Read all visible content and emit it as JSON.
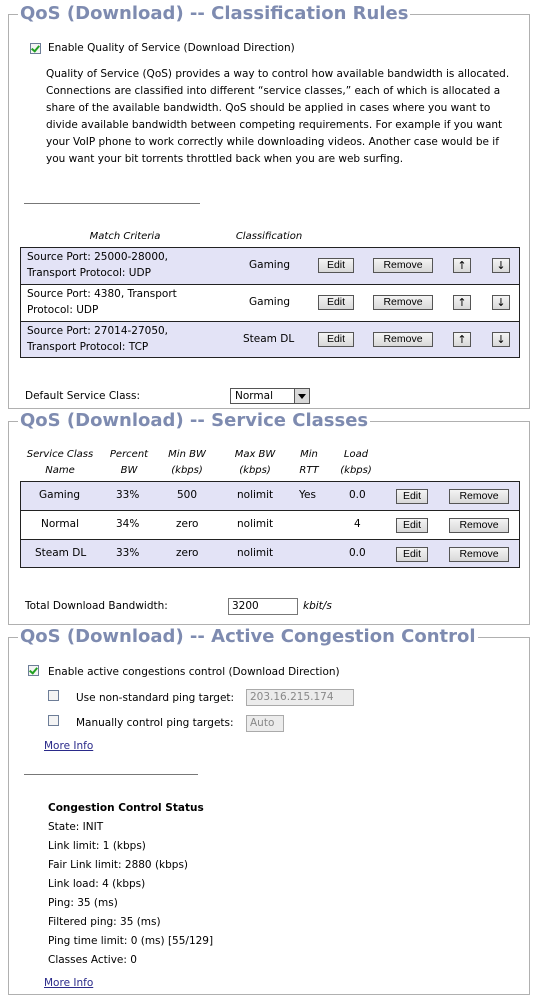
{
  "classification": {
    "title": "QoS (Download) -- Classification Rules",
    "enable_label": "Enable Quality of Service (Download Direction)",
    "enable_checked": true,
    "description": "Quality of Service (QoS) provides a way to control how available bandwidth is allocated. Connections are classified into different “service classes,” each of which is allocated a share of the available bandwidth. QoS should be applied in cases where you want to divide available bandwidth between competing requirements. For example if you want your VoIP phone to work correctly while downloading videos. Another case would be if you want your bit torrents throttled back when you are web surfing.",
    "headers": {
      "match": "Match Criteria",
      "class": "Classification"
    },
    "rules": [
      {
        "line1": "Source Port: 25000-28000,",
        "line2": "Transport Protocol: UDP",
        "class": "Gaming"
      },
      {
        "line1": "Source Port: 4380, Transport",
        "line2": "Protocol: UDP",
        "class": "Gaming"
      },
      {
        "line1": "Source Port: 27014-27050,",
        "line2": "Transport Protocol: TCP",
        "class": "Steam DL"
      }
    ],
    "edit_label": "Edit",
    "remove_label": "Remove",
    "up_glyph": "↑",
    "down_glyph": "↓",
    "default_label": "Default Service Class:",
    "default_value": "Normal"
  },
  "service_classes": {
    "title": "QoS (Download) -- Service Classes",
    "headers": {
      "name1": "Service Class",
      "name2": "Name",
      "pct1": "Percent",
      "pct2": "BW",
      "min1": "Min BW",
      "min2": "(kbps)",
      "max1": "Max BW",
      "max2": "(kbps)",
      "rtt1": "Min",
      "rtt2": "RTT",
      "load1": "Load",
      "load2": "(kbps)"
    },
    "rows": [
      {
        "name": "Gaming",
        "percent": "33%",
        "min": "500",
        "max": "nolimit",
        "rtt": "Yes",
        "load": "0.0"
      },
      {
        "name": "Normal",
        "percent": "34%",
        "min": "zero",
        "max": "nolimit",
        "rtt": "",
        "load": "4"
      },
      {
        "name": "Steam DL",
        "percent": "33%",
        "min": "zero",
        "max": "nolimit",
        "rtt": "",
        "load": "0.0"
      }
    ],
    "edit_label": "Edit",
    "remove_label": "Remove",
    "total_label": "Total Download Bandwidth:",
    "total_value": "3200",
    "total_unit": "kbit/s"
  },
  "congestion": {
    "title": "QoS (Download) -- Active Congestion Control",
    "enable_label": "Enable active congestions control (Download Direction)",
    "enable_checked": true,
    "ping_target_label": "Use non-standard ping target:",
    "ping_target_value": "203.16.215.174",
    "manual_label": "Manually control ping targets:",
    "manual_value": "Auto",
    "more_info": "More Info",
    "status_title": "Congestion Control Status",
    "status_lines": [
      "State: INIT",
      "Link limit: 1 (kbps)",
      "Fair Link limit: 2880 (kbps)",
      "Link load: 4 (kbps)",
      "Ping: 35 (ms)",
      "Filtered ping: 35 (ms)",
      "Ping time limit: 0 (ms) [55/129]",
      "Classes Active: 0"
    ],
    "more_info_2": "More Info"
  }
}
